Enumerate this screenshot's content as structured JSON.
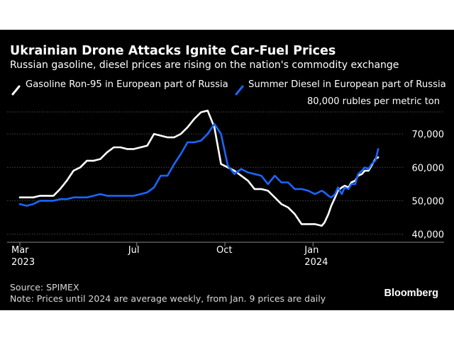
{
  "title": "Ukrainian Drone Attacks Ignite Car-Fuel Prices",
  "subtitle": "Russian gasoline, diesel prices are rising on the nation's commodity exchange",
  "units": "80,000 rubles per metric ton",
  "source": "Source: SPIMEX",
  "note": "Note: Prices until 2024 are average weekly, from Jan. 9 prices are daily",
  "brand": "Bloomberg",
  "colors": {
    "background": "#000000",
    "gasoline": "#ffffff",
    "diesel": "#1a66ff",
    "grid": "#4a4a4a",
    "text": "#ffffff"
  },
  "chart_data": {
    "type": "line",
    "title": "Ukrainian Drone Attacks Ignite Car-Fuel Prices",
    "ylim": [
      38000,
      80000
    ],
    "yticks": [
      40000,
      50000,
      60000,
      70000
    ],
    "ytick_labels": [
      "40,000",
      "50,000",
      "60,000",
      "70,000"
    ],
    "xlim": [
      "2023-03-01",
      "2024-03-20"
    ],
    "xticks": [
      {
        "date": "2023-03-01",
        "label": "Mar",
        "sublabel": "2023"
      },
      {
        "date": "2023-07-01",
        "label": "Jul",
        "sublabel": ""
      },
      {
        "date": "2023-10-01",
        "label": "Oct",
        "sublabel": ""
      },
      {
        "date": "2024-01-01",
        "label": "Jan",
        "sublabel": "2024"
      }
    ],
    "grid": true,
    "legend_position": "top",
    "series": [
      {
        "name": "Gasoline Ron-95 in European part of Russia",
        "color": "#ffffff",
        "points": [
          [
            "2023-03-01",
            51000
          ],
          [
            "2023-03-08",
            51000
          ],
          [
            "2023-03-15",
            51000
          ],
          [
            "2023-03-22",
            51500
          ],
          [
            "2023-03-29",
            51500
          ],
          [
            "2023-04-05",
            51500
          ],
          [
            "2023-04-12",
            53500
          ],
          [
            "2023-04-19",
            56000
          ],
          [
            "2023-04-26",
            59000
          ],
          [
            "2023-05-03",
            60000
          ],
          [
            "2023-05-10",
            62000
          ],
          [
            "2023-05-17",
            62000
          ],
          [
            "2023-05-24",
            62500
          ],
          [
            "2023-05-31",
            64500
          ],
          [
            "2023-06-07",
            66000
          ],
          [
            "2023-06-14",
            66000
          ],
          [
            "2023-06-21",
            65500
          ],
          [
            "2023-06-28",
            65500
          ],
          [
            "2023-07-05",
            66000
          ],
          [
            "2023-07-12",
            66500
          ],
          [
            "2023-07-19",
            70000
          ],
          [
            "2023-07-26",
            69500
          ],
          [
            "2023-08-02",
            69000
          ],
          [
            "2023-08-09",
            69000
          ],
          [
            "2023-08-16",
            70000
          ],
          [
            "2023-08-23",
            72000
          ],
          [
            "2023-08-30",
            74500
          ],
          [
            "2023-09-06",
            76500
          ],
          [
            "2023-09-13",
            77000
          ],
          [
            "2023-09-20",
            72000
          ],
          [
            "2023-09-27",
            61000
          ],
          [
            "2023-10-04",
            60000
          ],
          [
            "2023-10-11",
            59000
          ],
          [
            "2023-10-18",
            57500
          ],
          [
            "2023-10-25",
            56000
          ],
          [
            "2023-11-01",
            53500
          ],
          [
            "2023-11-08",
            53500
          ],
          [
            "2023-11-15",
            53000
          ],
          [
            "2023-11-22",
            51000
          ],
          [
            "2023-11-29",
            49000
          ],
          [
            "2023-12-06",
            48000
          ],
          [
            "2023-12-13",
            46000
          ],
          [
            "2023-12-20",
            43000
          ],
          [
            "2023-12-27",
            43000
          ],
          [
            "2024-01-03",
            43000
          ],
          [
            "2024-01-10",
            42500
          ],
          [
            "2024-01-13",
            43500
          ],
          [
            "2024-01-17",
            46000
          ],
          [
            "2024-01-20",
            48500
          ],
          [
            "2024-01-24",
            51000
          ],
          [
            "2024-01-27",
            53000
          ],
          [
            "2024-01-31",
            54000
          ],
          [
            "2024-02-03",
            54500
          ],
          [
            "2024-02-07",
            54000
          ],
          [
            "2024-02-10",
            55500
          ],
          [
            "2024-02-14",
            56000
          ],
          [
            "2024-02-17",
            57500
          ],
          [
            "2024-02-21",
            58000
          ],
          [
            "2024-02-24",
            59000
          ],
          [
            "2024-02-28",
            59000
          ],
          [
            "2024-03-02",
            60500
          ],
          [
            "2024-03-06",
            62500
          ],
          [
            "2024-03-09",
            63000
          ]
        ]
      },
      {
        "name": "Summer Diesel in European part of Russia",
        "color": "#1a66ff",
        "points": [
          [
            "2023-03-01",
            49000
          ],
          [
            "2023-03-08",
            48500
          ],
          [
            "2023-03-15",
            49000
          ],
          [
            "2023-03-22",
            50000
          ],
          [
            "2023-03-29",
            50000
          ],
          [
            "2023-04-05",
            50000
          ],
          [
            "2023-04-12",
            50500
          ],
          [
            "2023-04-19",
            50500
          ],
          [
            "2023-04-26",
            51000
          ],
          [
            "2023-05-03",
            51000
          ],
          [
            "2023-05-10",
            51000
          ],
          [
            "2023-05-17",
            51500
          ],
          [
            "2023-05-24",
            52000
          ],
          [
            "2023-05-31",
            51500
          ],
          [
            "2023-06-07",
            51500
          ],
          [
            "2023-06-14",
            51500
          ],
          [
            "2023-06-21",
            51500
          ],
          [
            "2023-06-28",
            51500
          ],
          [
            "2023-07-05",
            52000
          ],
          [
            "2023-07-12",
            52500
          ],
          [
            "2023-07-19",
            54000
          ],
          [
            "2023-07-26",
            57500
          ],
          [
            "2023-08-02",
            57500
          ],
          [
            "2023-08-09",
            61000
          ],
          [
            "2023-08-16",
            64000
          ],
          [
            "2023-08-23",
            67500
          ],
          [
            "2023-08-30",
            67500
          ],
          [
            "2023-09-06",
            68000
          ],
          [
            "2023-09-13",
            70000
          ],
          [
            "2023-09-20",
            73000
          ],
          [
            "2023-09-27",
            70000
          ],
          [
            "2023-10-04",
            60500
          ],
          [
            "2023-10-11",
            58000
          ],
          [
            "2023-10-18",
            59500
          ],
          [
            "2023-10-25",
            58500
          ],
          [
            "2023-11-01",
            58000
          ],
          [
            "2023-11-08",
            57500
          ],
          [
            "2023-11-15",
            55000
          ],
          [
            "2023-11-22",
            57500
          ],
          [
            "2023-11-29",
            55500
          ],
          [
            "2023-12-06",
            55500
          ],
          [
            "2023-12-13",
            53500
          ],
          [
            "2023-12-20",
            53500
          ],
          [
            "2023-12-27",
            53000
          ],
          [
            "2024-01-03",
            52000
          ],
          [
            "2024-01-10",
            53000
          ],
          [
            "2024-01-13",
            52500
          ],
          [
            "2024-01-17",
            51500
          ],
          [
            "2024-01-20",
            51000
          ],
          [
            "2024-01-24",
            52000
          ],
          [
            "2024-01-27",
            54000
          ],
          [
            "2024-01-31",
            52000
          ],
          [
            "2024-02-03",
            54000
          ],
          [
            "2024-02-07",
            53500
          ],
          [
            "2024-02-10",
            55000
          ],
          [
            "2024-02-14",
            55000
          ],
          [
            "2024-02-17",
            58000
          ],
          [
            "2024-02-21",
            59000
          ],
          [
            "2024-02-24",
            60000
          ],
          [
            "2024-02-28",
            59500
          ],
          [
            "2024-03-02",
            61000
          ],
          [
            "2024-03-06",
            62000
          ],
          [
            "2024-03-09",
            65500
          ]
        ]
      }
    ]
  }
}
